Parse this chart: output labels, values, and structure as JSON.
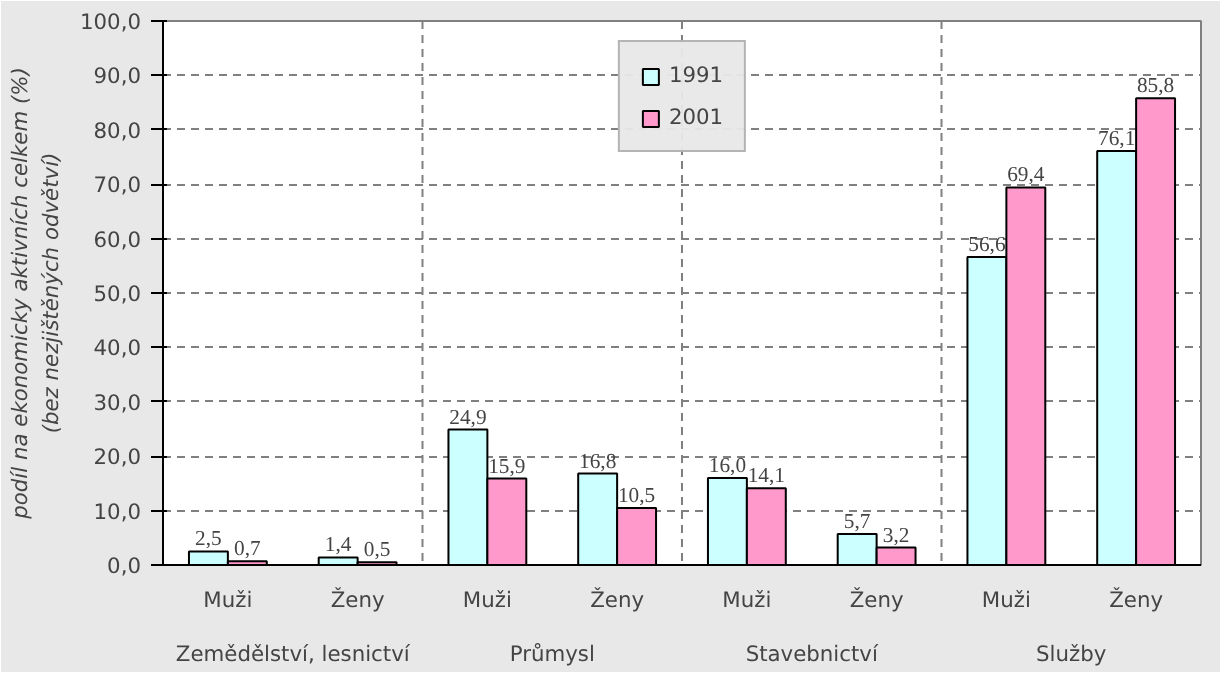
{
  "chart_data": {
    "type": "bar",
    "ylabel": "podíl na ekonomicky aktivních celkem (%)\n(bez nezjištěných odvětví)",
    "categories": [
      "Muži",
      "Ženy",
      "Muži",
      "Ženy",
      "Muži",
      "Ženy",
      "Muži",
      "Ženy"
    ],
    "annotations": [
      "Zemědělství, lesnictví",
      "Průmysl",
      "Stavebnictví",
      "Služby"
    ],
    "series": [
      {
        "name": "1991",
        "color": "#ccffff",
        "values": [
          2.5,
          1.4,
          24.9,
          16.8,
          16.0,
          5.7,
          56.6,
          76.1
        ],
        "value_labels": [
          "2,5",
          "1,4",
          "24,9",
          "16,8",
          "16,0",
          "5,7",
          "56,6",
          "76,1"
        ]
      },
      {
        "name": "2001",
        "color": "#ff99cc",
        "values": [
          0.7,
          0.5,
          15.9,
          10.5,
          14.1,
          3.2,
          69.4,
          85.8
        ],
        "value_labels": [
          "0,7",
          "0,5",
          "15,9",
          "10,5",
          "14,1",
          "3,2",
          "69,4",
          "85,8"
        ]
      }
    ],
    "ylim": [
      0,
      100
    ],
    "yticks": [
      {
        "value": 0,
        "label": "0,0"
      },
      {
        "value": 10,
        "label": "10,0"
      },
      {
        "value": 20,
        "label": "20,0"
      },
      {
        "value": 30,
        "label": "30,0"
      },
      {
        "value": 40,
        "label": "40,0"
      },
      {
        "value": 50,
        "label": "50,0"
      },
      {
        "value": 60,
        "label": "60,0"
      },
      {
        "value": 70,
        "label": "70,0"
      },
      {
        "value": 80,
        "label": "80,0"
      },
      {
        "value": 90,
        "label": "90,0"
      },
      {
        "value": 100,
        "label": "100,0"
      }
    ],
    "grid": "y",
    "legend": "top"
  }
}
